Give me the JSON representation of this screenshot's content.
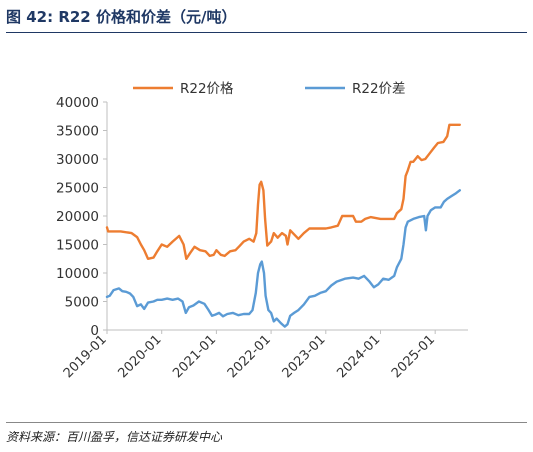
{
  "figure_title": "图 42:  R22 价格和价差（元/吨）",
  "source": "资料来源：百川盈孚，信达证券研发中心",
  "chart_data": {
    "type": "line",
    "title": "",
    "xlabel": "",
    "ylabel": "",
    "ylim": [
      0,
      40000
    ],
    "yticks": [
      0,
      5000,
      10000,
      15000,
      20000,
      25000,
      30000,
      35000,
      40000
    ],
    "ytick_labels": [
      "0",
      "5000",
      "10000",
      "15000",
      "20000",
      "25000",
      "30000",
      "35000",
      "40000"
    ],
    "xlim": [
      2019.0,
      2025.6
    ],
    "xticks": [
      2019.0,
      2020.0,
      2021.0,
      2022.0,
      2023.0,
      2024.0,
      2025.0
    ],
    "xtick_labels": [
      "2019-01",
      "2020-01",
      "2021-01",
      "2022-01",
      "2023-01",
      "2024-01",
      "2025-01"
    ],
    "grid": false,
    "legend_position": "top",
    "series": [
      {
        "name": "R22价格",
        "color": "#ed7d31",
        "points": [
          [
            2019.0,
            18000
          ],
          [
            2019.02,
            17300
          ],
          [
            2019.25,
            17300
          ],
          [
            2019.45,
            17000
          ],
          [
            2019.55,
            16300
          ],
          [
            2019.62,
            15000
          ],
          [
            2019.68,
            14000
          ],
          [
            2019.75,
            12500
          ],
          [
            2019.85,
            12700
          ],
          [
            2019.92,
            13800
          ],
          [
            2020.0,
            15000
          ],
          [
            2020.1,
            14600
          ],
          [
            2020.2,
            15500
          ],
          [
            2020.32,
            16500
          ],
          [
            2020.4,
            15000
          ],
          [
            2020.45,
            12500
          ],
          [
            2020.52,
            13500
          ],
          [
            2020.6,
            14600
          ],
          [
            2020.7,
            14000
          ],
          [
            2020.8,
            13800
          ],
          [
            2020.88,
            13000
          ],
          [
            2020.95,
            13200
          ],
          [
            2021.0,
            14000
          ],
          [
            2021.08,
            13200
          ],
          [
            2021.15,
            13000
          ],
          [
            2021.25,
            13800
          ],
          [
            2021.35,
            14000
          ],
          [
            2021.42,
            14700
          ],
          [
            2021.5,
            15500
          ],
          [
            2021.6,
            16000
          ],
          [
            2021.68,
            15500
          ],
          [
            2021.73,
            17000
          ],
          [
            2021.76,
            22000
          ],
          [
            2021.79,
            25500
          ],
          [
            2021.82,
            26000
          ],
          [
            2021.86,
            24500
          ],
          [
            2021.89,
            19500
          ],
          [
            2021.93,
            14800
          ],
          [
            2022.0,
            15500
          ],
          [
            2022.05,
            17000
          ],
          [
            2022.12,
            16200
          ],
          [
            2022.2,
            17000
          ],
          [
            2022.27,
            16500
          ],
          [
            2022.3,
            15000
          ],
          [
            2022.35,
            17500
          ],
          [
            2022.5,
            16000
          ],
          [
            2022.6,
            17000
          ],
          [
            2022.7,
            17800
          ],
          [
            2022.8,
            17800
          ],
          [
            2023.0,
            17800
          ],
          [
            2023.1,
            18000
          ],
          [
            2023.22,
            18300
          ],
          [
            2023.3,
            20000
          ],
          [
            2023.5,
            20000
          ],
          [
            2023.55,
            19000
          ],
          [
            2023.65,
            19000
          ],
          [
            2023.72,
            19500
          ],
          [
            2023.82,
            19800
          ],
          [
            2024.0,
            19500
          ],
          [
            2024.25,
            19500
          ],
          [
            2024.3,
            20500
          ],
          [
            2024.38,
            21200
          ],
          [
            2024.42,
            23000
          ],
          [
            2024.46,
            27000
          ],
          [
            2024.5,
            28000
          ],
          [
            2024.55,
            29500
          ],
          [
            2024.6,
            29500
          ],
          [
            2024.68,
            30500
          ],
          [
            2024.75,
            29800
          ],
          [
            2024.82,
            30000
          ],
          [
            2024.9,
            31000
          ],
          [
            2024.98,
            32000
          ],
          [
            2025.05,
            32800
          ],
          [
            2025.15,
            33000
          ],
          [
            2025.22,
            34000
          ],
          [
            2025.26,
            36000
          ],
          [
            2025.45,
            36000
          ]
        ]
      },
      {
        "name": "R22价差",
        "color": "#5b9bd5",
        "points": [
          [
            2019.0,
            5800
          ],
          [
            2019.05,
            6000
          ],
          [
            2019.12,
            7000
          ],
          [
            2019.22,
            7300
          ],
          [
            2019.28,
            6800
          ],
          [
            2019.35,
            6700
          ],
          [
            2019.42,
            6400
          ],
          [
            2019.48,
            5800
          ],
          [
            2019.55,
            4200
          ],
          [
            2019.62,
            4500
          ],
          [
            2019.68,
            3700
          ],
          [
            2019.75,
            4800
          ],
          [
            2019.85,
            5000
          ],
          [
            2019.92,
            5300
          ],
          [
            2020.0,
            5300
          ],
          [
            2020.1,
            5500
          ],
          [
            2020.2,
            5300
          ],
          [
            2020.3,
            5500
          ],
          [
            2020.38,
            5000
          ],
          [
            2020.44,
            3000
          ],
          [
            2020.5,
            4000
          ],
          [
            2020.58,
            4300
          ],
          [
            2020.68,
            5000
          ],
          [
            2020.78,
            4600
          ],
          [
            2020.85,
            3600
          ],
          [
            2020.92,
            2500
          ],
          [
            2020.98,
            2700
          ],
          [
            2021.05,
            3000
          ],
          [
            2021.12,
            2400
          ],
          [
            2021.2,
            2800
          ],
          [
            2021.3,
            3000
          ],
          [
            2021.4,
            2600
          ],
          [
            2021.5,
            2800
          ],
          [
            2021.6,
            2800
          ],
          [
            2021.66,
            3500
          ],
          [
            2021.72,
            6500
          ],
          [
            2021.76,
            10000
          ],
          [
            2021.8,
            11500
          ],
          [
            2021.83,
            12000
          ],
          [
            2021.87,
            10000
          ],
          [
            2021.9,
            6000
          ],
          [
            2021.95,
            3500
          ],
          [
            2022.0,
            3000
          ],
          [
            2022.05,
            1500
          ],
          [
            2022.1,
            2000
          ],
          [
            2022.18,
            1200
          ],
          [
            2022.25,
            600
          ],
          [
            2022.3,
            1000
          ],
          [
            2022.35,
            2500
          ],
          [
            2022.42,
            3000
          ],
          [
            2022.5,
            3500
          ],
          [
            2022.6,
            4500
          ],
          [
            2022.7,
            5800
          ],
          [
            2022.8,
            6000
          ],
          [
            2022.9,
            6500
          ],
          [
            2023.0,
            6800
          ],
          [
            2023.1,
            7800
          ],
          [
            2023.2,
            8500
          ],
          [
            2023.35,
            9000
          ],
          [
            2023.5,
            9200
          ],
          [
            2023.6,
            9000
          ],
          [
            2023.7,
            9500
          ],
          [
            2023.8,
            8500
          ],
          [
            2023.88,
            7500
          ],
          [
            2023.96,
            8000
          ],
          [
            2024.05,
            9000
          ],
          [
            2024.15,
            8800
          ],
          [
            2024.25,
            9500
          ],
          [
            2024.3,
            11000
          ],
          [
            2024.38,
            12500
          ],
          [
            2024.42,
            15000
          ],
          [
            2024.46,
            18000
          ],
          [
            2024.5,
            19000
          ],
          [
            2024.6,
            19500
          ],
          [
            2024.7,
            19800
          ],
          [
            2024.8,
            20000
          ],
          [
            2024.83,
            17500
          ],
          [
            2024.86,
            20000
          ],
          [
            2024.92,
            21000
          ],
          [
            2025.0,
            21500
          ],
          [
            2025.1,
            21500
          ],
          [
            2025.16,
            22500
          ],
          [
            2025.22,
            23000
          ],
          [
            2025.3,
            23500
          ],
          [
            2025.38,
            24000
          ],
          [
            2025.45,
            24500
          ]
        ]
      }
    ]
  }
}
